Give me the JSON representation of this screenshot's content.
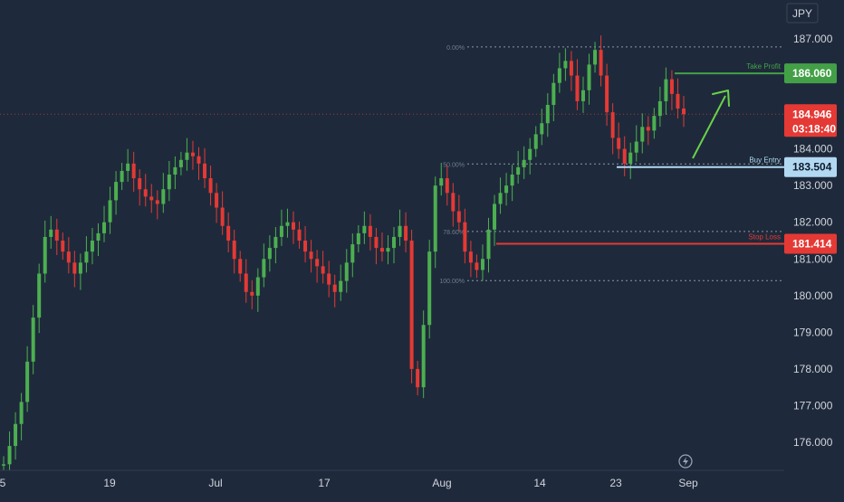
{
  "colors": {
    "background": "#1e2a3b",
    "up_candle": "#4caf50",
    "down_candle": "#e53935",
    "take_profit": "#43a047",
    "buy_entry": "#b3d9f2",
    "stop_loss": "#e53935",
    "current_price": "#e53935",
    "fib_line": "#8a98aa",
    "axis_text": "#d1d4dc",
    "arrow": "#6ad24a"
  },
  "currency_label": "JPY",
  "current_price": {
    "value": "184.946",
    "countdown": "03:18:40",
    "price": 184.946
  },
  "levels": {
    "take_profit": {
      "label": "Take Profit",
      "value": "186.060",
      "price": 186.06
    },
    "buy_entry": {
      "label": "Buy Entry",
      "value": "183.504",
      "price": 183.504
    },
    "stop_loss": {
      "label": "Stop Loss",
      "value": "181.414",
      "price": 181.414
    }
  },
  "fib_levels": [
    {
      "label": "0.00%",
      "price": 186.78
    },
    {
      "label": "50.00%",
      "price": 183.59
    },
    {
      "label": "78.60%",
      "price": 181.75
    },
    {
      "label": "100.00%",
      "price": 180.41
    }
  ],
  "indicator_icon": "lightning-icon",
  "chart_data": {
    "type": "candlestick",
    "ylim": [
      175.4,
      187.2
    ],
    "y_ticks": [
      "187.000",
      "186.000",
      "185.000",
      "184.000",
      "183.000",
      "182.000",
      "181.000",
      "180.000",
      "179.000",
      "178.000",
      "177.000",
      "176.000"
    ],
    "x_ticks": [
      "5",
      "19",
      "Jul",
      "17",
      "Aug",
      "14",
      "23",
      "Sep"
    ],
    "grid": false,
    "legend": "none",
    "series": [
      {
        "values": [
          175.4,
          175.9,
          176.5,
          177.1,
          178.2,
          179.4,
          180.6,
          181.6,
          181.8,
          181.5,
          181.2,
          180.9,
          180.6,
          180.9,
          181.2,
          181.5,
          181.7,
          182.0,
          182.6,
          183.1,
          183.4,
          183.6,
          183.2,
          182.9,
          182.7,
          182.6,
          182.5,
          182.9,
          183.3,
          183.5,
          183.7,
          183.9,
          183.8,
          183.6,
          183.2,
          182.8,
          182.4,
          181.9,
          181.5,
          181.0,
          180.6,
          180.1,
          180.0,
          180.5,
          181.0,
          181.3,
          181.6,
          181.9,
          182.0,
          181.8,
          181.5,
          181.2,
          181.0,
          180.8,
          180.6,
          180.3,
          180.1,
          180.4,
          180.9,
          181.4,
          181.7,
          181.9,
          181.6,
          181.3,
          181.2,
          181.3,
          181.6,
          181.9,
          181.5,
          178.0,
          177.5,
          179.2,
          181.2,
          183.0,
          183.2,
          182.8,
          182.3,
          182.0,
          181.2,
          180.9,
          180.7,
          181.0,
          181.8,
          182.5,
          182.8,
          183.0,
          183.3,
          183.5,
          183.7,
          184.0,
          184.4,
          184.7,
          185.2,
          185.8,
          186.2,
          186.4,
          186.0,
          185.3,
          185.6,
          186.3,
          186.7,
          186.0,
          185.0,
          184.3,
          184.0,
          183.6,
          183.9,
          184.2,
          184.6,
          184.5,
          184.9,
          185.3,
          185.9,
          185.5,
          185.1,
          184.946
        ]
      }
    ]
  }
}
